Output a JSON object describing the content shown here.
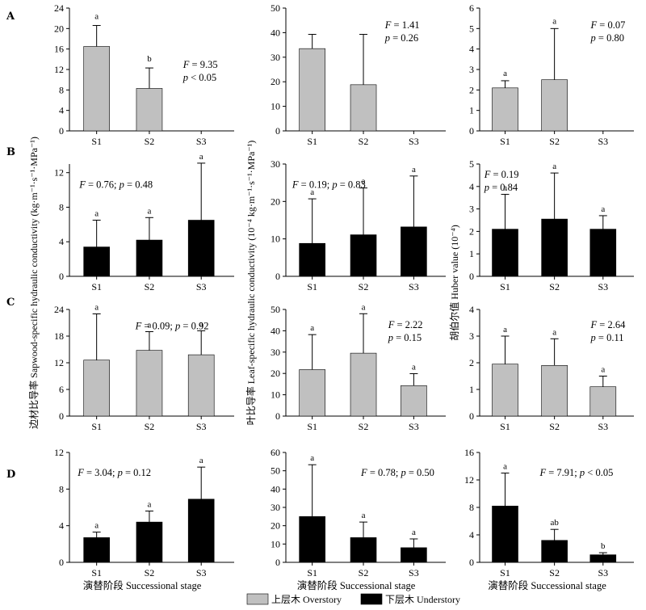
{
  "figure": {
    "row_labels": [
      "A",
      "B",
      "C",
      "D"
    ],
    "y_labels": [
      "边材比导率  Sapwood-specific hydraulic conductivity  (kg·m⁻¹·s⁻¹·MPa⁻¹)",
      "叶比导率  Leaf-specific hydraulic conductivity  (10⁻⁴ kg·m⁻¹·s⁻¹·MPa⁻¹)",
      "胡伯尔值  Huber value  (10⁻⁴)"
    ],
    "x_label": "演替阶段   Successional stage",
    "legend": [
      {
        "label": "上层木 Overstory",
        "color": "#c0c0c0"
      },
      {
        "label": "下层木 Understory",
        "color": "#000000"
      }
    ]
  },
  "chart_data": [
    {
      "panel": "A",
      "column": 1,
      "type": "bar",
      "categories": [
        "S1",
        "S2",
        "S3"
      ],
      "series": [
        {
          "name": "上层木 Overstory",
          "values": [
            16.5,
            8.3,
            0
          ],
          "errors": [
            4.1,
            4.0,
            0
          ]
        }
      ],
      "significance": [
        "a",
        "b",
        ""
      ],
      "annotation": [
        "F = 9.35",
        "p < 0.05"
      ],
      "ylim": [
        0,
        24
      ],
      "yticks": [
        0,
        4,
        8,
        12,
        16,
        20,
        24
      ],
      "color": "#c0c0c0"
    },
    {
      "panel": "A",
      "column": 2,
      "type": "bar",
      "categories": [
        "S1",
        "S2",
        "S3"
      ],
      "series": [
        {
          "name": "上层木 Overstory",
          "values": [
            33.5,
            18.8,
            0
          ],
          "errors": [
            5.8,
            20.5,
            0
          ]
        }
      ],
      "significance": [
        "",
        "",
        ""
      ],
      "annotation": [
        "F = 1.41",
        "p = 0.26"
      ],
      "ylim": [
        0,
        50
      ],
      "yticks": [
        0,
        10,
        20,
        30,
        40,
        50
      ],
      "color": "#c0c0c0"
    },
    {
      "panel": "A",
      "column": 3,
      "type": "bar",
      "categories": [
        "S1",
        "S2",
        "S3"
      ],
      "series": [
        {
          "name": "上层木 Overstory",
          "values": [
            2.1,
            2.5,
            0
          ],
          "errors": [
            0.35,
            2.5,
            0
          ]
        }
      ],
      "significance": [
        "a",
        "a",
        ""
      ],
      "annotation": [
        "F = 0.07",
        "p = 0.80"
      ],
      "ylim": [
        0,
        6
      ],
      "yticks": [
        0,
        1,
        2,
        3,
        4,
        5,
        6
      ],
      "color": "#c0c0c0"
    },
    {
      "panel": "B",
      "column": 1,
      "type": "bar",
      "categories": [
        "S1",
        "S2",
        "S3"
      ],
      "series": [
        {
          "name": "下层木 Understory",
          "values": [
            3.4,
            4.2,
            6.5
          ],
          "errors": [
            3.1,
            2.6,
            6.6
          ]
        }
      ],
      "significance": [
        "a",
        "a",
        "a"
      ],
      "annotation": [
        "F = 0.76; p = 0.48"
      ],
      "ylim": [
        0,
        13
      ],
      "yticks": [
        0,
        4,
        8,
        12
      ],
      "color": "#000000"
    },
    {
      "panel": "B",
      "column": 2,
      "type": "bar",
      "categories": [
        "S1",
        "S2",
        "S3"
      ],
      "series": [
        {
          "name": "下层木 Understory",
          "values": [
            8.8,
            11.1,
            13.2
          ],
          "errors": [
            11.9,
            12.5,
            13.6
          ]
        }
      ],
      "significance": [
        "a",
        "a",
        "a"
      ],
      "annotation": [
        "F = 0.19; p = 0.83"
      ],
      "ylim": [
        0,
        30
      ],
      "yticks": [
        0,
        10,
        20,
        30
      ],
      "color": "#000000"
    },
    {
      "panel": "B",
      "column": 3,
      "type": "bar",
      "categories": [
        "S1",
        "S2",
        "S3"
      ],
      "series": [
        {
          "name": "下层木 Understory",
          "values": [
            2.1,
            2.55,
            2.1
          ],
          "errors": [
            1.55,
            2.05,
            0.6
          ]
        }
      ],
      "significance": [
        "a",
        "a",
        "a"
      ],
      "annotation": [
        "F = 0.19",
        "p = 0.84"
      ],
      "ylim": [
        0,
        5
      ],
      "yticks": [
        0,
        1,
        2,
        3,
        4,
        5
      ],
      "color": "#000000"
    },
    {
      "panel": "C",
      "column": 1,
      "type": "bar",
      "categories": [
        "S1",
        "S2",
        "S3"
      ],
      "series": [
        {
          "name": "上层木 Overstory",
          "values": [
            12.6,
            14.8,
            13.8
          ],
          "errors": [
            10.4,
            4.2,
            5.4
          ]
        }
      ],
      "significance": [
        "a",
        "a",
        "a"
      ],
      "annotation": [
        "F = 0.09; p = 0.92"
      ],
      "ylim": [
        0,
        24
      ],
      "yticks": [
        0,
        6,
        12,
        18,
        24
      ],
      "color": "#c0c0c0"
    },
    {
      "panel": "C",
      "column": 2,
      "type": "bar",
      "categories": [
        "S1",
        "S2",
        "S3"
      ],
      "series": [
        {
          "name": "上层木 Overstory",
          "values": [
            21.8,
            29.5,
            14.3
          ],
          "errors": [
            16.4,
            18.5,
            5.6
          ]
        }
      ],
      "significance": [
        "a",
        "a",
        "a"
      ],
      "annotation": [
        "F = 2.22",
        "p = 0.15"
      ],
      "ylim": [
        0,
        50
      ],
      "yticks": [
        0,
        10,
        20,
        30,
        40,
        50
      ],
      "color": "#c0c0c0"
    },
    {
      "panel": "C",
      "column": 3,
      "type": "bar",
      "categories": [
        "S1",
        "S2",
        "S3"
      ],
      "series": [
        {
          "name": "上层木 Overstory",
          "values": [
            1.95,
            1.9,
            1.1
          ],
          "errors": [
            1.05,
            1.0,
            0.4
          ]
        }
      ],
      "significance": [
        "a",
        "a",
        "a"
      ],
      "annotation": [
        "F = 2.64",
        "p = 0.11"
      ],
      "ylim": [
        0,
        4
      ],
      "yticks": [
        0,
        1,
        2,
        3,
        4
      ],
      "color": "#c0c0c0"
    },
    {
      "panel": "D",
      "column": 1,
      "type": "bar",
      "categories": [
        "S1",
        "S2",
        "S3"
      ],
      "series": [
        {
          "name": "下层木 Understory",
          "values": [
            2.7,
            4.4,
            6.9
          ],
          "errors": [
            0.6,
            1.2,
            3.5
          ]
        }
      ],
      "significance": [
        "a",
        "a",
        "a"
      ],
      "annotation": [
        "F = 3.04; p = 0.12"
      ],
      "ylim": [
        0,
        12
      ],
      "yticks": [
        0,
        4,
        8,
        12
      ],
      "color": "#000000"
    },
    {
      "panel": "D",
      "column": 2,
      "type": "bar",
      "categories": [
        "S1",
        "S2",
        "S3"
      ],
      "series": [
        {
          "name": "下层木 Understory",
          "values": [
            25.0,
            13.5,
            8.0
          ],
          "errors": [
            28.3,
            8.5,
            4.8
          ]
        }
      ],
      "significance": [
        "a",
        "a",
        "a"
      ],
      "annotation": [
        "F = 0.78; p = 0.50"
      ],
      "ylim": [
        0,
        60
      ],
      "yticks": [
        0,
        10,
        20,
        30,
        40,
        50,
        60
      ],
      "color": "#000000"
    },
    {
      "panel": "D",
      "column": 3,
      "type": "bar",
      "categories": [
        "S1",
        "S2",
        "S3"
      ],
      "series": [
        {
          "name": "下层木 Understory",
          "values": [
            8.2,
            3.2,
            1.1
          ],
          "errors": [
            4.8,
            1.6,
            0.3
          ]
        }
      ],
      "significance": [
        "a",
        "ab",
        "b"
      ],
      "annotation": [
        "F = 7.91; p < 0.05"
      ],
      "ylim": [
        0,
        16
      ],
      "yticks": [
        0,
        4,
        8,
        12,
        16
      ],
      "color": "#000000"
    }
  ]
}
